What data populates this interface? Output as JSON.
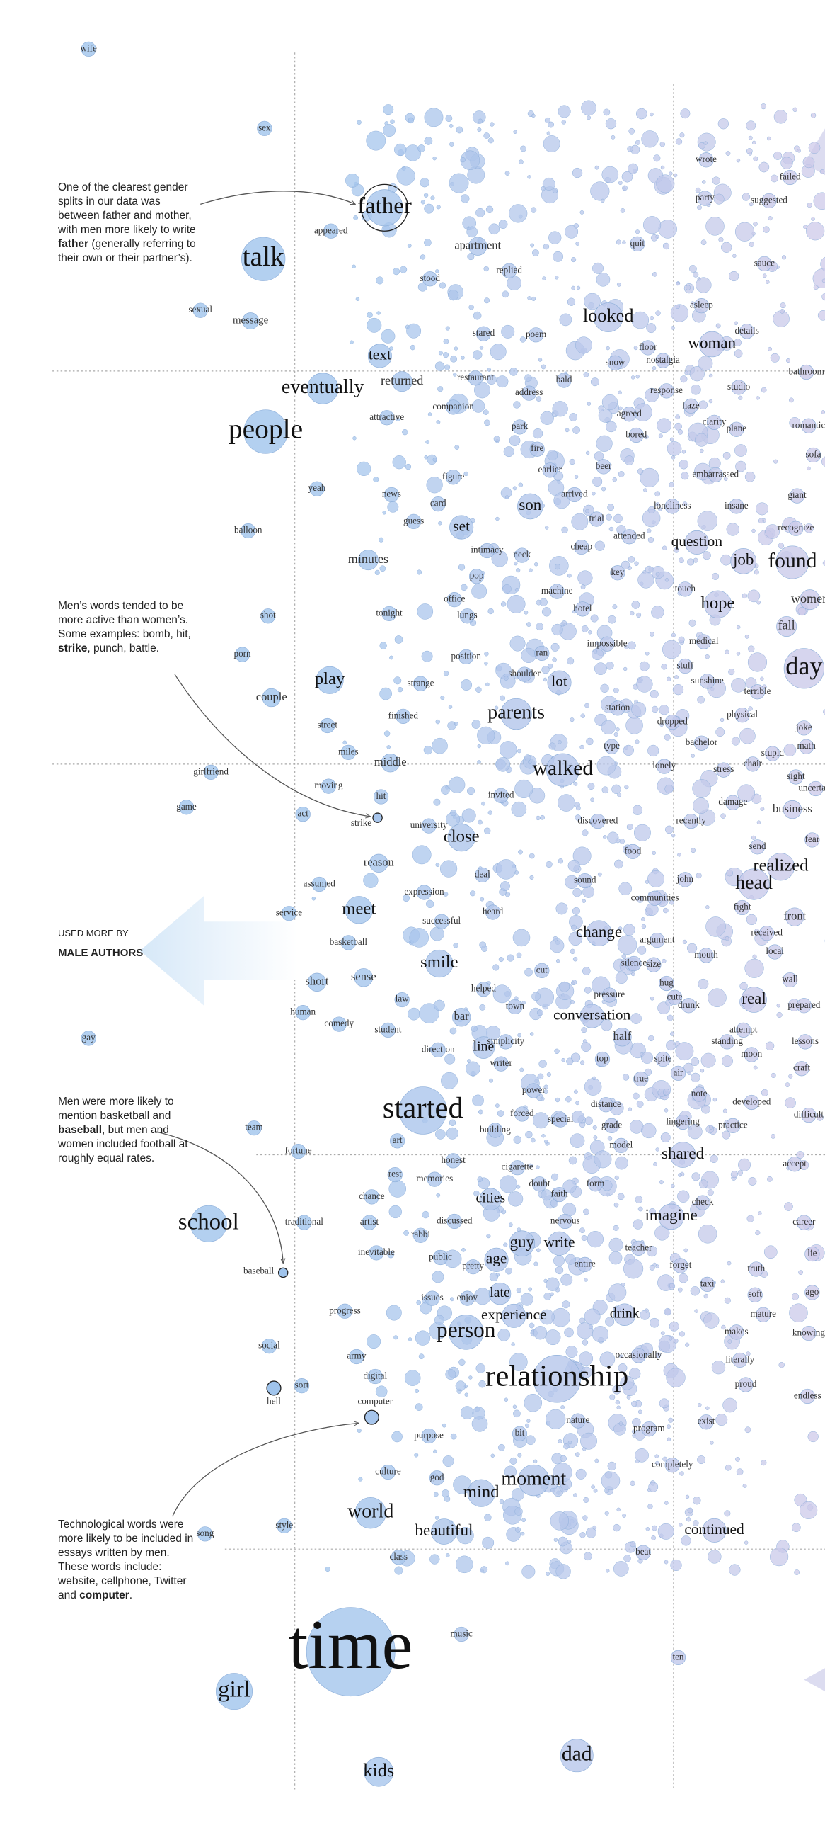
{
  "words": [
    "wife",
    "sex",
    "father",
    "talk",
    "appeared",
    "apartment",
    "quit",
    "stood",
    "replied",
    "sexual",
    "message",
    "wrote",
    "party",
    "failed",
    "suggested",
    "sauce",
    "asleep",
    "looked",
    "stared",
    "poem",
    "details",
    "floor",
    "woman",
    "text",
    "snow",
    "bathroom",
    "eventually",
    "returned",
    "restaurant",
    "bald",
    "response",
    "studio",
    "address",
    "companion",
    "haze",
    "nostalgia",
    "agreed",
    "clarity",
    "people",
    "attractive",
    "park",
    "bored",
    "plane",
    "romantic",
    "fire",
    "sofa",
    "earlier",
    "beer",
    "embarrassed",
    "yeah",
    "figure",
    "news",
    "card",
    "arrived",
    "trial",
    "son",
    "insane",
    "giant",
    "loneliness",
    "guess",
    "set",
    "balloon",
    "recognize",
    "attended",
    "question",
    "minutes",
    "intimacy",
    "neck",
    "cheap",
    "job",
    "found",
    "pop",
    "key",
    "machine",
    "women",
    "office",
    "touch",
    "hope",
    "tonight",
    "lungs",
    "hotel",
    "shot",
    "fall",
    "impossible",
    "medical",
    "day",
    "position",
    "ran",
    "porn",
    "stuff",
    "sunshine",
    "shoulder",
    "strange",
    "lot",
    "terrible",
    "play",
    "couple",
    "station",
    "parents",
    "physical",
    "dropped",
    "finished",
    "street",
    "joke",
    "math",
    "bachelor",
    "miles",
    "type",
    "middle",
    "stupid",
    "walked",
    "lonely",
    "stress",
    "chair",
    "sight",
    "girlfriend",
    "moving",
    "uncertain",
    "invited",
    "hit",
    "damage",
    "game",
    "business",
    "act",
    "strike",
    "university",
    "discovered",
    "recently",
    "close",
    "fear",
    "send",
    "food",
    "reason",
    "realized",
    "head",
    "deal",
    "john",
    "assumed",
    "sound",
    "expression",
    "communities",
    "meet",
    "fight",
    "service",
    "front",
    "heard",
    "successful",
    "change",
    "argument",
    "received",
    "basketball",
    "local",
    "mouth",
    "silence",
    "size",
    "smile",
    "cut",
    "wall",
    "sense",
    "short",
    "law",
    "hug",
    "helped",
    "pressure",
    "cute",
    "real",
    "prepared",
    "drunk",
    "human",
    "town",
    "conversation",
    "bar",
    "comedy",
    "student",
    "attempt",
    "half",
    "simplicity",
    "standing",
    "lessons",
    "direction",
    "moon",
    "line",
    "gay",
    "top",
    "writer",
    "spite",
    "craft",
    "true",
    "air",
    "power",
    "note",
    "developed",
    "distance",
    "started",
    "forced",
    "difficult",
    "special",
    "lingering",
    "practice",
    "team",
    "grade",
    "art",
    "building",
    "model",
    "fortune",
    "shared",
    "accept",
    "honest",
    "cigarette",
    "rest",
    "memories",
    "doubt",
    "form",
    "faith",
    "chance",
    "cities",
    "check",
    "imagine",
    "school",
    "career",
    "artist",
    "discussed",
    "traditional",
    "rabbi",
    "nervous",
    "guy",
    "write",
    "teacher",
    "lie",
    "inevitable",
    "public",
    "age",
    "pretty",
    "entire",
    "forget",
    "truth",
    "baseball",
    "taxi",
    "ago",
    "late",
    "soft",
    "issues",
    "enjoy",
    "drink",
    "experience",
    "progress",
    "mature",
    "knowing",
    "person",
    "makes",
    "social",
    "army",
    "occasionally",
    "literally",
    "relationship",
    "digital",
    "proud",
    "sort",
    "hell",
    "endless",
    "computer",
    "nature",
    "exist",
    "program",
    "purpose",
    "bit",
    "completely",
    "culture",
    "god",
    "moment",
    "mind",
    "world",
    "song",
    "style",
    "beautiful",
    "continued",
    "beat",
    "class",
    "music",
    "time",
    "ten",
    "girl",
    "dad",
    "kids"
  ],
  "annotations": [
    [
      "One of the clearest gender splits in our data was between father and mother, with men more likely to write ",
      "father",
      " (generally referring to their own or their partner’s)."
    ],
    [
      "Men’s words tended to be more active than women’s. Some examples: bomb, hit, ",
      "strike",
      ", punch, battle."
    ],
    [
      "Men were more likely to mention basketball and ",
      "baseball",
      ", but men and women included football at roughly equal rates."
    ],
    [
      "Technological words were more likely to be included in essays written by men. These words include: website, cellphone, Twitter and ",
      "computer",
      "."
    ]
  ],
  "side_label": {
    "line1": "USED MORE BY",
    "line2": "MALE AUTHORS"
  }
}
